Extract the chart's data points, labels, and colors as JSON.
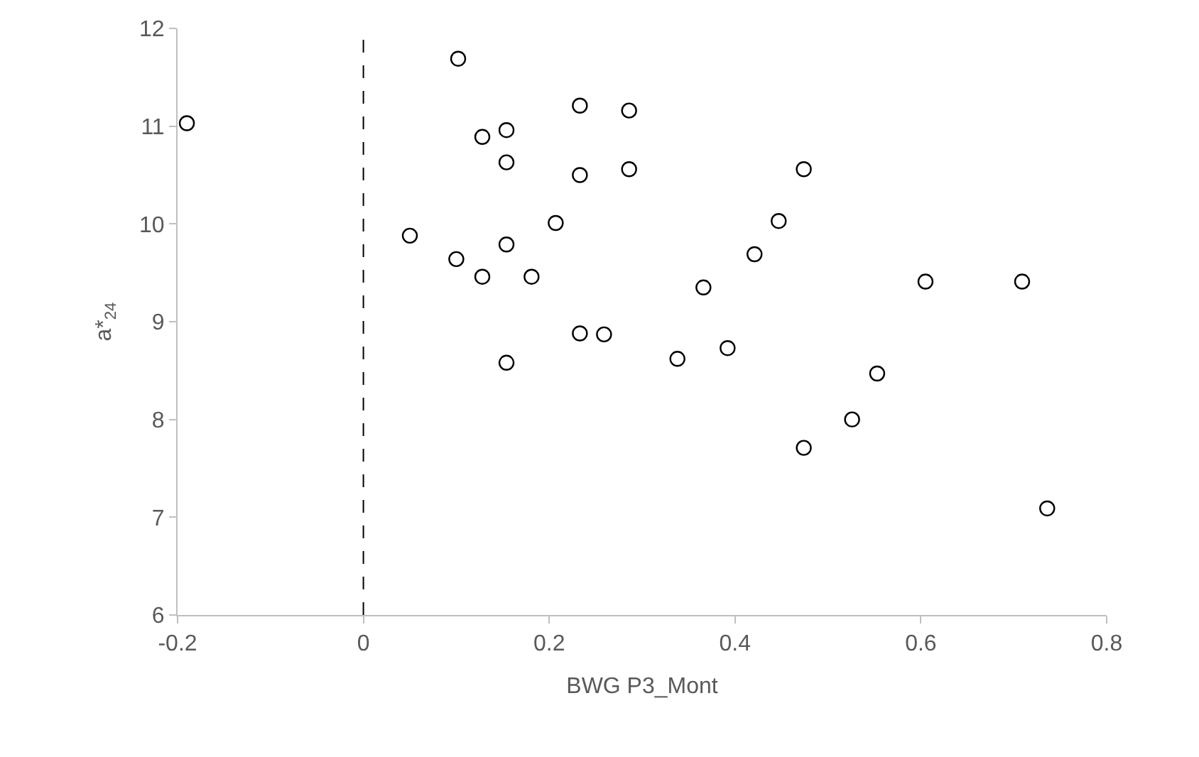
{
  "chart_data": {
    "type": "scatter",
    "xlabel": "BWG P3_Mont",
    "ylabel": "a*$_{24}$",
    "xlim": [
      -0.2,
      0.8
    ],
    "xticks": [
      {
        "value": -0.2,
        "label": "-0.2"
      },
      0,
      {
        "value": 0.2,
        "label": "0.2"
      },
      {
        "value": 0.4,
        "label": "0.4"
      },
      {
        "value": 0.6,
        "label": "0.6"
      },
      {
        "value": 0.8,
        "label": "0.8"
      }
    ],
    "ylim": [
      6,
      12
    ],
    "yticks": [
      6,
      7,
      8,
      9,
      10,
      11,
      12
    ],
    "marker": "circle",
    "ref_lines": [
      {
        "axis": "x",
        "value": 0,
        "color": "#000000",
        "line_style": "dashed"
      }
    ],
    "series": [
      {
        "color": "#000000",
        "x": [
          -0.19,
          0.102,
          0.05,
          0.1,
          0.128,
          0.154,
          0.154,
          0.154,
          0.128,
          0.181,
          0.154,
          0.207,
          0.233,
          0.233,
          0.233,
          0.259,
          0.286,
          0.286,
          0.338,
          0.366,
          0.392,
          0.421,
          0.447,
          0.474,
          0.474,
          0.526,
          0.553,
          0.605,
          0.709,
          0.736
        ],
        "values": [
          11.03,
          11.69,
          9.88,
          9.64,
          10.89,
          10.96,
          10.63,
          9.79,
          9.46,
          9.46,
          8.58,
          10.01,
          11.21,
          10.5,
          8.88,
          8.87,
          11.16,
          10.56,
          8.62,
          9.35,
          8.73,
          9.69,
          10.03,
          10.56,
          7.71,
          8.0,
          8.47,
          9.41,
          9.41,
          7.09
        ]
      }
    ]
  }
}
